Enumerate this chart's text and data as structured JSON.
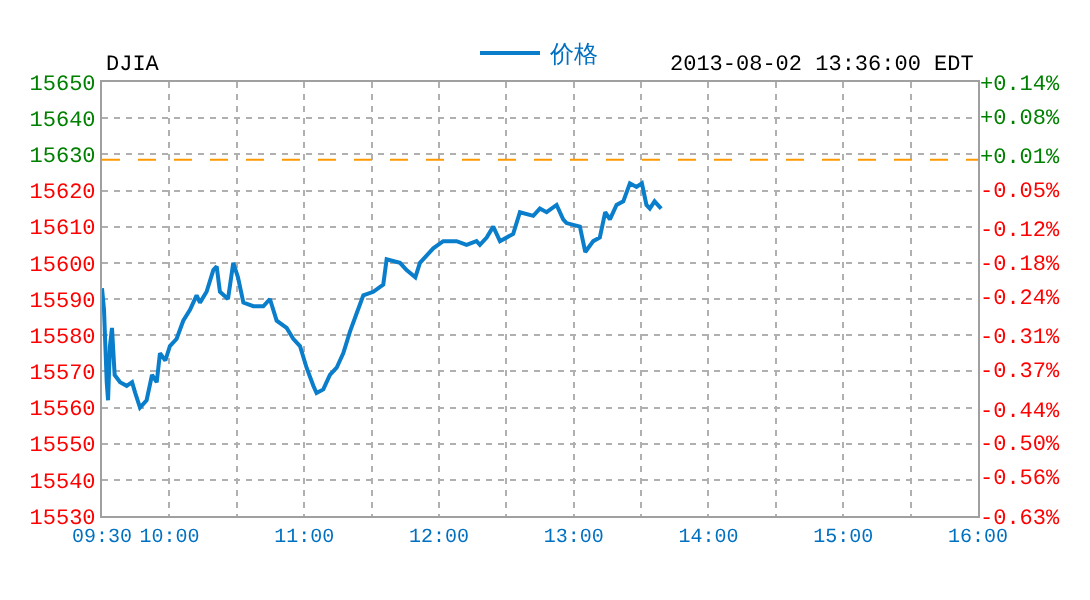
{
  "chart_data": {
    "type": "line",
    "title": "DJIA",
    "subtitle": "2013-08-02 13:36:00 EDT",
    "x": [
      9.5,
      9.515,
      9.525,
      9.535,
      9.545,
      9.559,
      9.574,
      9.594,
      9.634,
      9.683,
      9.723,
      9.747,
      9.782,
      9.831,
      9.871,
      9.906,
      9.93,
      9.97,
      10.004,
      10.054,
      10.103,
      10.153,
      10.202,
      10.227,
      10.276,
      10.326,
      10.351,
      10.375,
      10.435,
      10.474,
      10.509,
      10.549,
      10.623,
      10.697,
      10.746,
      10.796,
      10.87,
      10.919,
      10.969,
      11.018,
      11.068,
      11.092,
      11.142,
      11.191,
      11.241,
      11.29,
      11.34,
      11.389,
      11.439,
      11.513,
      11.587,
      11.612,
      11.711,
      11.76,
      11.825,
      11.859,
      11.958,
      12.032,
      12.131,
      12.205,
      12.279,
      12.304,
      12.354,
      12.403,
      12.453,
      12.551,
      12.601,
      12.7,
      12.749,
      12.799,
      12.873,
      12.922,
      12.947,
      13.046,
      13.086,
      13.145,
      13.194,
      13.234,
      13.269,
      13.318,
      13.368,
      13.417,
      13.466,
      13.506,
      13.54,
      13.565,
      13.6,
      13.649
    ],
    "series": [
      {
        "name": "价格",
        "color": "#0a7ecb",
        "values": [
          15593,
          15587,
          15577,
          15567,
          15562,
          15577,
          15582,
          15569,
          15567,
          15566,
          15567,
          15564,
          15560,
          15562,
          15569,
          15567,
          15575,
          15573,
          15577,
          15579,
          15584,
          15587,
          15591,
          15589,
          15592,
          15598,
          15599,
          15592,
          15590,
          15600,
          15596,
          15589,
          15588,
          15588,
          15590,
          15584,
          15582,
          15579,
          15577,
          15571,
          15566,
          15564,
          15565,
          15569,
          15571,
          15575,
          15581,
          15586,
          15591,
          15592,
          15594,
          15601,
          15600,
          15598,
          15596,
          15600,
          15604,
          15606,
          15606,
          15605,
          15606,
          15605,
          15607,
          15610,
          15606,
          15608,
          15614,
          15613,
          15615,
          15614,
          15616,
          15612,
          15611,
          15610,
          15603,
          15606,
          15607,
          15614,
          15612,
          15616,
          15617,
          15622,
          15621,
          15622,
          15616,
          15615,
          15617,
          15615
        ]
      }
    ],
    "xlim": [
      9.5,
      16
    ],
    "xticks": [
      {
        "value": 9.5,
        "label": "09:30"
      },
      {
        "value": 10,
        "label": "10:00"
      },
      {
        "value": 10.5,
        "label": null
      },
      {
        "value": 11,
        "label": "11:00"
      },
      {
        "value": 11.5,
        "label": null
      },
      {
        "value": 12,
        "label": "12:00"
      },
      {
        "value": 12.5,
        "label": null
      },
      {
        "value": 13,
        "label": "13:00"
      },
      {
        "value": 13.5,
        "label": null
      },
      {
        "value": 14,
        "label": "14:00"
      },
      {
        "value": 14.5,
        "label": null
      },
      {
        "value": 15,
        "label": "15:00"
      },
      {
        "value": 15.5,
        "label": null
      },
      {
        "value": 16,
        "label": "16:00"
      }
    ],
    "ylim": [
      15530,
      15650
    ],
    "yticks": [
      15530,
      15540,
      15550,
      15560,
      15570,
      15580,
      15590,
      15600,
      15610,
      15620,
      15630,
      15640,
      15650
    ],
    "y2lim": [
      -0.63,
      0.14
    ],
    "y2ticks": [
      {
        "value": 0.14,
        "label": "+0.14%"
      },
      {
        "value": 0.08,
        "label": "+0.08%"
      },
      {
        "value": 0.01,
        "label": "+0.01%"
      },
      {
        "value": -0.05,
        "label": "-0.05%"
      },
      {
        "value": -0.12,
        "label": "-0.12%"
      },
      {
        "value": -0.18,
        "label": "-0.18%"
      },
      {
        "value": -0.24,
        "label": "-0.24%"
      },
      {
        "value": -0.31,
        "label": "-0.31%"
      },
      {
        "value": -0.37,
        "label": "-0.37%"
      },
      {
        "value": -0.44,
        "label": "-0.44%"
      },
      {
        "value": -0.5,
        "label": "-0.50%"
      },
      {
        "value": -0.56,
        "label": "-0.56%"
      },
      {
        "value": -0.63,
        "label": "-0.63%"
      }
    ],
    "ref_lines": [
      {
        "axis": "y",
        "value": 15628.5,
        "color": "#ff9900",
        "line_style": "dashed"
      }
    ],
    "grid": true,
    "legend": "top",
    "marker": "none",
    "line_style": "solid"
  }
}
